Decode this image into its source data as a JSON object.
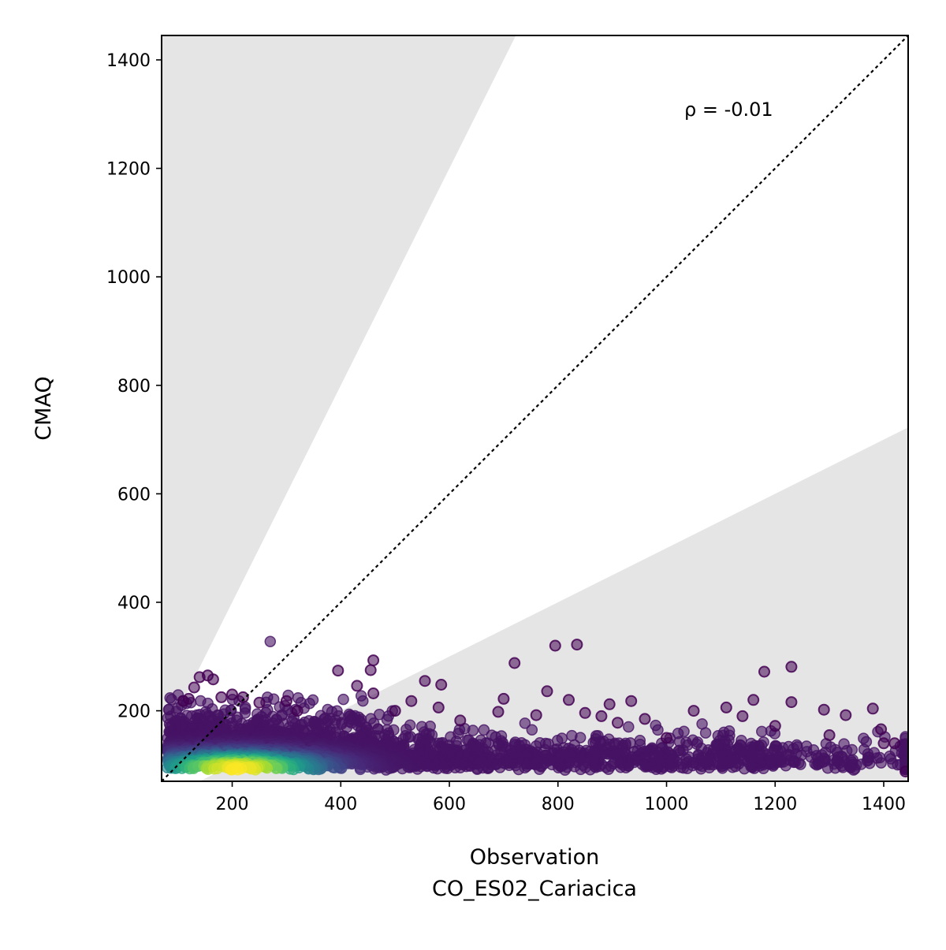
{
  "chart_data": {
    "type": "scatter",
    "title": "",
    "xlabel": "Observation",
    "xlabel_sub": "CO_ES02_Cariacica",
    "ylabel": "CMAQ",
    "xlim": [
      70,
      1445
    ],
    "ylim": [
      70,
      1445
    ],
    "xticks": [
      200,
      400,
      600,
      800,
      1000,
      1200,
      1400
    ],
    "yticks": [
      200,
      400,
      600,
      800,
      1000,
      1200,
      1400
    ],
    "annotation": "ρ = -0.01",
    "reference_line": {
      "style": "dotted",
      "slope": 1,
      "color": "#000000"
    },
    "shaded_band": {
      "color": "#e5e5e5",
      "outside_factor_2": true,
      "description_ratio_upper": 2.0,
      "description_ratio_lower": 0.5
    },
    "colormap": "viridis",
    "grid": false,
    "legend": "none",
    "outlier_points": [
      [
        140,
        262
      ],
      [
        155,
        265
      ],
      [
        165,
        258
      ],
      [
        130,
        243
      ],
      [
        110,
        218
      ],
      [
        120,
        222
      ],
      [
        395,
        274
      ],
      [
        430,
        246
      ],
      [
        460,
        293
      ],
      [
        455,
        275
      ],
      [
        460,
        232
      ],
      [
        555,
        255
      ],
      [
        585,
        248
      ],
      [
        720,
        288
      ],
      [
        795,
        320
      ],
      [
        835,
        322
      ],
      [
        780,
        236
      ],
      [
        700,
        222
      ],
      [
        820,
        220
      ],
      [
        850,
        196
      ],
      [
        895,
        212
      ],
      [
        935,
        218
      ],
      [
        1110,
        206
      ],
      [
        1160,
        220
      ],
      [
        1180,
        272
      ],
      [
        1230,
        281
      ],
      [
        1230,
        216
      ],
      [
        1290,
        202
      ],
      [
        1330,
        192
      ],
      [
        1380,
        204
      ],
      [
        1395,
        166
      ],
      [
        1050,
        200
      ],
      [
        1140,
        190
      ],
      [
        1400,
        140
      ],
      [
        1420,
        140
      ],
      [
        1440,
        88
      ],
      [
        1300,
        155
      ],
      [
        1200,
        172
      ],
      [
        1000,
        150
      ],
      [
        960,
        185
      ],
      [
        910,
        178
      ],
      [
        880,
        190
      ],
      [
        760,
        192
      ],
      [
        690,
        198
      ],
      [
        620,
        182
      ],
      [
        500,
        200
      ],
      [
        530,
        218
      ],
      [
        580,
        206
      ],
      [
        300,
        218
      ],
      [
        320,
        200
      ],
      [
        250,
        215
      ],
      [
        200,
        230
      ],
      [
        220,
        225
      ],
      [
        180,
        225
      ]
    ]
  }
}
